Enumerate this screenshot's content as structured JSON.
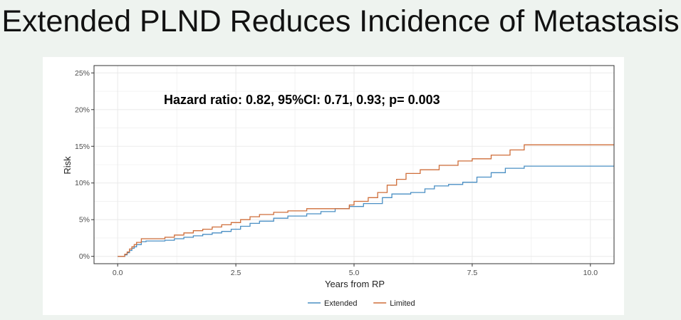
{
  "slide": {
    "title": "Extended PLND Reduces Incidence of Metastasis"
  },
  "colors": {
    "background": "#eef3ef",
    "panel": "#ffffff",
    "extended": "#4a8fc4",
    "limited": "#cf6e3a",
    "grid": "#ebebeb",
    "axis_text": "#4d4d4d"
  },
  "chart_data": {
    "type": "line",
    "step": true,
    "annotation": "Hazard ratio: 0.82, 95%CI: 0.71, 0.93; p= 0.003",
    "xlabel": "Years from RP",
    "ylabel": "Risk",
    "xlim": [
      -0.5,
      10.5
    ],
    "ylim": [
      -0.01,
      0.26
    ],
    "x_ticks": [
      0,
      2.5,
      5,
      7.5,
      10
    ],
    "x_tick_labels": [
      "0.0",
      "2.5",
      "5.0",
      "7.5",
      "10.0"
    ],
    "y_ticks": [
      0,
      0.05,
      0.1,
      0.15,
      0.2,
      0.25
    ],
    "y_tick_labels": [
      "0%",
      "5%",
      "10%",
      "15%",
      "20%",
      "25%"
    ],
    "grid": true,
    "legend_position": "bottom",
    "series": [
      {
        "name": "Extended",
        "color": "#4a8fc4",
        "x": [
          0,
          0.15,
          0.2,
          0.25,
          0.3,
          0.35,
          0.4,
          0.5,
          0.6,
          0.8,
          1.0,
          1.2,
          1.4,
          1.6,
          1.8,
          2.0,
          2.2,
          2.4,
          2.6,
          2.8,
          3.0,
          3.3,
          3.6,
          4.0,
          4.3,
          4.6,
          4.9,
          5.2,
          5.6,
          5.8,
          6.0,
          6.2,
          6.5,
          6.7,
          7.0,
          7.3,
          7.6,
          7.9,
          8.2,
          8.6,
          10.5
        ],
        "y": [
          0,
          0.002,
          0.005,
          0.008,
          0.011,
          0.013,
          0.016,
          0.02,
          0.021,
          0.021,
          0.022,
          0.024,
          0.026,
          0.028,
          0.03,
          0.032,
          0.034,
          0.037,
          0.041,
          0.045,
          0.048,
          0.052,
          0.055,
          0.058,
          0.061,
          0.065,
          0.068,
          0.072,
          0.08,
          0.085,
          0.085,
          0.087,
          0.092,
          0.096,
          0.098,
          0.101,
          0.108,
          0.114,
          0.12,
          0.123,
          0.123
        ]
      },
      {
        "name": "Limited",
        "color": "#cf6e3a",
        "x": [
          0,
          0.15,
          0.2,
          0.25,
          0.3,
          0.35,
          0.4,
          0.5,
          0.8,
          1.0,
          1.2,
          1.4,
          1.6,
          1.8,
          2.0,
          2.2,
          2.4,
          2.6,
          2.8,
          3.0,
          3.3,
          3.6,
          4.0,
          4.3,
          4.6,
          4.9,
          5.0,
          5.3,
          5.5,
          5.7,
          5.9,
          6.1,
          6.4,
          6.8,
          7.2,
          7.5,
          7.9,
          8.3,
          8.6,
          10.5
        ],
        "y": [
          0,
          0.003,
          0.006,
          0.01,
          0.013,
          0.016,
          0.019,
          0.024,
          0.024,
          0.026,
          0.029,
          0.032,
          0.035,
          0.037,
          0.04,
          0.043,
          0.046,
          0.05,
          0.054,
          0.057,
          0.06,
          0.062,
          0.065,
          0.065,
          0.065,
          0.07,
          0.075,
          0.08,
          0.087,
          0.097,
          0.105,
          0.113,
          0.118,
          0.124,
          0.13,
          0.133,
          0.138,
          0.145,
          0.152,
          0.152
        ]
      }
    ]
  }
}
